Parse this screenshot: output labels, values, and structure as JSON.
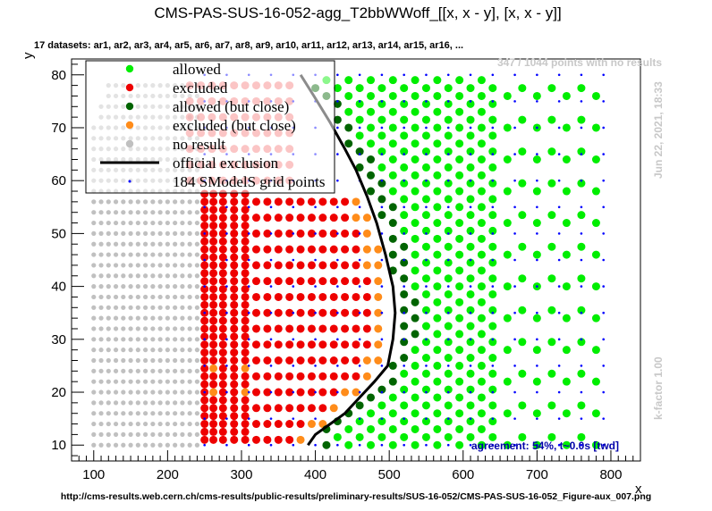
{
  "chart_data": {
    "type": "scatter",
    "title": "CMS-PAS-SUS-16-052-agg_T2bbWWoff_[[x, x - y], [x, x - y]]",
    "subtitle": "17 datasets: ar1, ar2, ar3, ar4, ar5, ar6, ar7, ar8, ar9, ar10, ar11, ar12, ar13, ar14, ar15, ar16,  ...",
    "xlabel": "x",
    "ylabel": "y",
    "xlim": [
      70,
      840
    ],
    "ylim": [
      7,
      83
    ],
    "xticks": [
      100,
      200,
      300,
      400,
      500,
      600,
      700,
      800
    ],
    "yticks": [
      10,
      20,
      30,
      40,
      50,
      60,
      70,
      80
    ],
    "no_results_note": "347 / 1044 points with no results",
    "timestamp": "Jun 22, 2021, 18:33",
    "kfactor": "k-factor 1.00",
    "agreement": "agreement: 54%, t~0.0s [twd]",
    "footer_url": "http://cms-results.web.cern.ch/cms-results/public-results/preliminary-results/SUS-16-052/CMS-PAS-SUS-16-052_Figure-aux_007.png",
    "legend": [
      {
        "key": "allowed",
        "label": "allowed",
        "color": "#00ee00",
        "marker": "dot"
      },
      {
        "key": "excluded",
        "label": "excluded",
        "color": "#ee0000",
        "marker": "dot"
      },
      {
        "key": "allowed_close",
        "label": "allowed (but close)",
        "color": "#006400",
        "marker": "dot"
      },
      {
        "key": "excluded_close",
        "label": "excluded (but close)",
        "color": "#ff8c1a",
        "marker": "dot"
      },
      {
        "key": "noresult",
        "label": "no result",
        "color": "#c0c0c0",
        "marker": "dot"
      },
      {
        "key": "official",
        "label": "official exclusion",
        "color": "#000000",
        "marker": "line"
      },
      {
        "key": "grid",
        "label": "184 SModelS grid points",
        "color": "#0000ff",
        "marker": "small"
      }
    ],
    "official_exclusion": {
      "x": [
        390,
        400,
        420,
        440,
        460,
        480,
        498,
        505,
        508,
        505,
        495,
        483,
        470,
        455,
        440,
        420,
        398,
        380
      ],
      "y": [
        10,
        12,
        14,
        16,
        19,
        22,
        25,
        30,
        35,
        40,
        46,
        52,
        57,
        62,
        66,
        71,
        76,
        80
      ]
    },
    "series": [
      {
        "key": "noresult",
        "x": [
          100,
          110,
          120,
          130,
          140,
          150,
          160,
          170,
          180,
          190,
          200,
          210,
          220,
          230,
          240
        ],
        "yrange": [
          10,
          78
        ]
      },
      {
        "key": "excluded",
        "x": [
          250,
          262,
          275,
          290,
          305,
          320,
          335,
          350,
          365,
          380,
          395,
          410,
          425,
          440,
          455,
          470,
          485
        ],
        "yrange": [
          11,
          58
        ]
      },
      {
        "key": "allowed",
        "x": [
          385,
          400,
          415,
          430,
          445,
          460,
          475,
          490,
          505,
          520,
          535,
          550,
          565,
          580,
          595,
          610,
          625,
          640,
          660,
          680,
          700,
          720,
          740,
          760,
          780
        ],
        "yrange": [
          10,
          80
        ]
      }
    ]
  }
}
